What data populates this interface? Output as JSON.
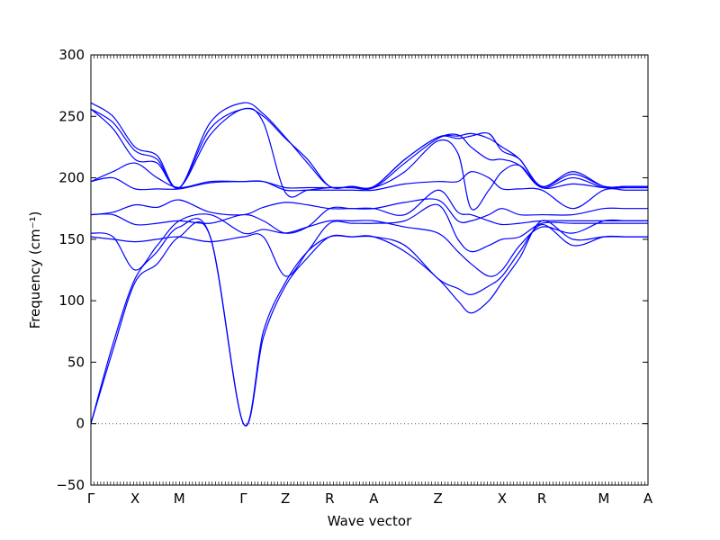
{
  "chart_data": {
    "type": "line",
    "xlabel": "Wave vector",
    "ylabel": "Frequency (cm⁻¹)",
    "ylim": [
      -50,
      300
    ],
    "yticks": [
      -50,
      0,
      50,
      100,
      150,
      200,
      250,
      300
    ],
    "xlim": [
      0,
      12.6
    ],
    "grid": false,
    "line_color": "#0000ff",
    "zero_line_color": "#555555",
    "high_symmetry_points": [
      {
        "label": "Γ",
        "x": 0.0
      },
      {
        "label": "X",
        "x": 1.0
      },
      {
        "label": "M",
        "x": 2.0
      },
      {
        "label": "Γ",
        "x": 3.45
      },
      {
        "label": "Z",
        "x": 4.4
      },
      {
        "label": "R",
        "x": 5.4
      },
      {
        "label": "A",
        "x": 6.4
      },
      {
        "label": "Z",
        "x": 7.85
      },
      {
        "label": "X",
        "x": 9.3
      },
      {
        "label": "R",
        "x": 10.2
      },
      {
        "label": "M",
        "x": 11.6
      },
      {
        "label": "A",
        "x": 12.6
      }
    ],
    "series": [
      {
        "x": [
          0,
          0.5,
          1.0,
          1.5,
          2.0,
          2.7,
          3.45,
          3.9,
          4.4,
          4.9,
          5.4,
          5.9,
          6.4,
          7.1,
          7.85,
          8.3,
          8.6,
          9.0,
          9.3,
          9.7,
          10.2,
          10.9,
          11.6,
          12.1,
          12.6
        ],
        "y": [
          0,
          60,
          115,
          130,
          152,
          152,
          0,
          70,
          112,
          135,
          152,
          152,
          152,
          140,
          118,
          100,
          90,
          100,
          115,
          135,
          165,
          150,
          152,
          152,
          152
        ]
      },
      {
        "x": [
          0,
          0.5,
          1.0,
          1.5,
          2.0,
          2.7,
          3.45,
          3.9,
          4.4,
          4.9,
          5.4,
          5.9,
          6.4,
          7.1,
          7.85,
          8.3,
          8.6,
          9.0,
          9.3,
          9.7,
          10.2,
          10.9,
          11.6,
          12.1,
          12.6
        ],
        "y": [
          0,
          65,
          118,
          140,
          160,
          152,
          0,
          75,
          115,
          140,
          152,
          152,
          152,
          145,
          118,
          110,
          105,
          112,
          120,
          140,
          162,
          145,
          152,
          152,
          152
        ]
      },
      {
        "x": [
          0,
          0.5,
          1.0,
          1.5,
          2.0,
          2.7,
          3.45,
          3.9,
          4.4,
          4.9,
          5.4,
          5.9,
          6.4,
          7.1,
          7.85,
          8.3,
          8.6,
          9.0,
          9.3,
          9.7,
          10.2,
          10.9,
          11.6,
          12.1,
          12.6
        ],
        "y": [
          155,
          152,
          125,
          145,
          165,
          170,
          155,
          158,
          155,
          160,
          165,
          165,
          165,
          160,
          155,
          140,
          130,
          120,
          125,
          145,
          160,
          155,
          165,
          165,
          165
        ]
      },
      {
        "x": [
          0,
          0.5,
          1.0,
          1.5,
          2.0,
          2.7,
          3.45,
          3.9,
          4.4,
          4.9,
          5.4,
          5.9,
          6.4,
          7.1,
          7.85,
          8.3,
          8.6,
          9.0,
          9.3,
          9.7,
          10.2,
          10.9,
          11.6,
          12.1,
          12.6
        ],
        "y": [
          152,
          150,
          148,
          150,
          152,
          148,
          152,
          152,
          120,
          140,
          163,
          163,
          163,
          165,
          178,
          150,
          140,
          145,
          150,
          152,
          163,
          163,
          163,
          163,
          163
        ]
      },
      {
        "x": [
          0,
          0.5,
          1.0,
          1.5,
          2.0,
          2.7,
          3.45,
          3.9,
          4.4,
          4.9,
          5.4,
          5.9,
          6.4,
          7.1,
          7.85,
          8.3,
          8.6,
          9.0,
          9.3,
          9.7,
          10.2,
          10.9,
          11.6,
          12.1,
          12.6
        ],
        "y": [
          170,
          170,
          162,
          163,
          165,
          163,
          170,
          165,
          155,
          160,
          175,
          175,
          175,
          170,
          190,
          172,
          170,
          165,
          162,
          163,
          165,
          165,
          165,
          165,
          165
        ]
      },
      {
        "x": [
          0,
          0.5,
          1.0,
          1.5,
          2.0,
          2.7,
          3.45,
          3.9,
          4.4,
          4.9,
          5.4,
          5.9,
          6.4,
          7.1,
          7.85,
          8.3,
          8.6,
          9.0,
          9.3,
          9.7,
          10.2,
          10.9,
          11.6,
          12.1,
          12.6
        ],
        "y": [
          170,
          172,
          178,
          176,
          182,
          172,
          170,
          176,
          180,
          178,
          175,
          175,
          175,
          180,
          182,
          165,
          165,
          170,
          175,
          170,
          170,
          170,
          175,
          175,
          175
        ]
      },
      {
        "x": [
          0,
          0.5,
          1.0,
          1.5,
          2.0,
          2.7,
          3.45,
          3.9,
          4.4,
          4.9,
          5.4,
          5.9,
          6.4,
          7.1,
          7.85,
          8.3,
          8.6,
          9.0,
          9.3,
          9.7,
          10.2,
          10.9,
          11.6,
          12.1,
          12.6
        ],
        "y": [
          197,
          200,
          191,
          191,
          191,
          196,
          197,
          197,
          190,
          190,
          190,
          190,
          190,
          195,
          197,
          197,
          205,
          200,
          191,
          191,
          190,
          175,
          190,
          190,
          190
        ]
      },
      {
        "x": [
          0,
          0.5,
          1.0,
          1.5,
          2.0,
          2.7,
          3.45,
          3.9,
          4.4,
          4.9,
          5.4,
          5.9,
          6.4,
          7.1,
          7.85,
          8.3,
          8.6,
          9.0,
          9.3,
          9.7,
          10.2,
          10.9,
          11.6,
          12.1,
          12.6
        ],
        "y": [
          197,
          205,
          212,
          200,
          192,
          197,
          197,
          197,
          192,
          192,
          192,
          192,
          192,
          205,
          230,
          220,
          175,
          190,
          205,
          210,
          192,
          195,
          192,
          192,
          192
        ]
      },
      {
        "x": [
          0,
          0.5,
          1.0,
          1.5,
          2.0,
          2.7,
          3.45,
          3.9,
          4.4,
          4.9,
          5.4,
          5.9,
          6.4,
          7.1,
          7.85,
          8.3,
          8.6,
          9.0,
          9.3,
          9.7,
          10.2,
          10.9,
          11.6,
          12.1,
          12.6
        ],
        "y": [
          256,
          240,
          215,
          212,
          192,
          235,
          256,
          245,
          188,
          190,
          192,
          192,
          192,
          212,
          232,
          235,
          225,
          215,
          215,
          210,
          192,
          200,
          192,
          192,
          192
        ]
      },
      {
        "x": [
          0,
          0.5,
          1.0,
          1.5,
          2.0,
          2.7,
          3.45,
          3.9,
          4.4,
          4.9,
          5.4,
          5.9,
          6.4,
          7.1,
          7.85,
          8.3,
          8.6,
          9.0,
          9.3,
          9.7,
          10.2,
          10.9,
          11.6,
          12.1,
          12.6
        ],
        "y": [
          256,
          245,
          222,
          215,
          192,
          240,
          256,
          250,
          232,
          215,
          193,
          193,
          193,
          215,
          233,
          232,
          234,
          236,
          222,
          215,
          193,
          203,
          193,
          193,
          193
        ]
      },
      {
        "x": [
          0,
          0.5,
          1.0,
          1.5,
          2.0,
          2.7,
          3.45,
          3.9,
          4.4,
          4.9,
          5.4,
          5.9,
          6.4,
          7.1,
          7.85,
          8.3,
          8.6,
          9.0,
          9.3,
          9.7,
          10.2,
          10.9,
          11.6,
          12.1,
          12.6
        ],
        "y": [
          261,
          250,
          225,
          218,
          192,
          245,
          261,
          252,
          233,
          212,
          193,
          193,
          193,
          215,
          233,
          234,
          236,
          232,
          225,
          215,
          193,
          205,
          193,
          193,
          193
        ]
      }
    ]
  }
}
